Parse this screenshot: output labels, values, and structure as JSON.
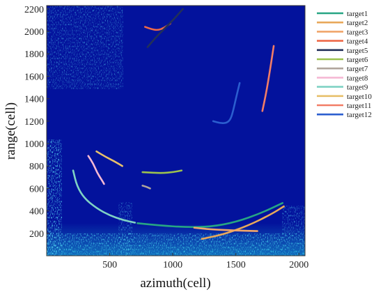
{
  "chart_data": {
    "type": "line",
    "title": "",
    "xlabel": "azimuth(cell)",
    "ylabel": "range(cell)",
    "xlim": [
      0,
      2048
    ],
    "ylim": [
      0,
      2230
    ],
    "xticks": [
      500,
      1000,
      1500,
      2000
    ],
    "yticks": [
      200,
      400,
      600,
      800,
      1000,
      1200,
      1400,
      1600,
      1800,
      2000,
      2200
    ],
    "background": "radar clutter heatmap",
    "background_color": "#03129c",
    "legend_position": "right",
    "series": [
      {
        "name": "target1",
        "color": "#27a583",
        "x": [
          720,
          900,
          1100,
          1300,
          1500,
          1700,
          1870
        ],
        "y": [
          290,
          270,
          255,
          258,
          300,
          380,
          470
        ]
      },
      {
        "name": "target2",
        "color": "#e8a85a",
        "x": [
          1230,
          1400,
          1600,
          1780,
          1880
        ],
        "y": [
          150,
          190,
          270,
          370,
          440
        ]
      },
      {
        "name": "target3",
        "color": "#f0a56a",
        "x": [
          1170,
          1300,
          1500,
          1670
        ],
        "y": [
          250,
          235,
          225,
          220
        ]
      },
      {
        "name": "target4",
        "color": "#ee6948",
        "x": [
          780,
          830,
          880,
          930,
          980
        ],
        "y": [
          2040,
          2020,
          2010,
          2030,
          2070
        ]
      },
      {
        "name": "target5",
        "color": "#223059",
        "x": [
          800,
          860,
          930,
          1010,
          1080
        ],
        "y": [
          1860,
          1940,
          2020,
          2110,
          2200
        ]
      },
      {
        "name": "target6",
        "color": "#9cc24e",
        "x": [
          760,
          840,
          920,
          1000,
          1070
        ],
        "y": [
          745,
          740,
          737,
          745,
          760
        ]
      },
      {
        "name": "target7",
        "color": "#b0a59c",
        "x": [
          760,
          790,
          820
        ],
        "y": [
          625,
          615,
          600
        ]
      },
      {
        "name": "target8",
        "color": "#f5b8d4",
        "x": [
          330,
          370,
          400,
          440,
          455
        ],
        "y": [
          890,
          820,
          740,
          670,
          640
        ]
      },
      {
        "name": "target9",
        "color": "#7fd2c4",
        "x": [
          210,
          240,
          300,
          400,
          500,
          600,
          700
        ],
        "y": [
          760,
          620,
          510,
          420,
          360,
          320,
          295
        ]
      },
      {
        "name": "target10",
        "color": "#e7c06b",
        "x": [
          395,
          470,
          540,
          600
        ],
        "y": [
          930,
          880,
          840,
          800
        ]
      },
      {
        "name": "target11",
        "color": "#f27d66",
        "x": [
          1710,
          1740,
          1770,
          1800
        ],
        "y": [
          1290,
          1450,
          1650,
          1870
        ]
      },
      {
        "name": "target12",
        "color": "#2b5ecf",
        "x": [
          1320,
          1380,
          1430,
          1460,
          1480,
          1500,
          1530
        ],
        "y": [
          1200,
          1180,
          1185,
          1220,
          1300,
          1400,
          1540
        ]
      }
    ]
  }
}
